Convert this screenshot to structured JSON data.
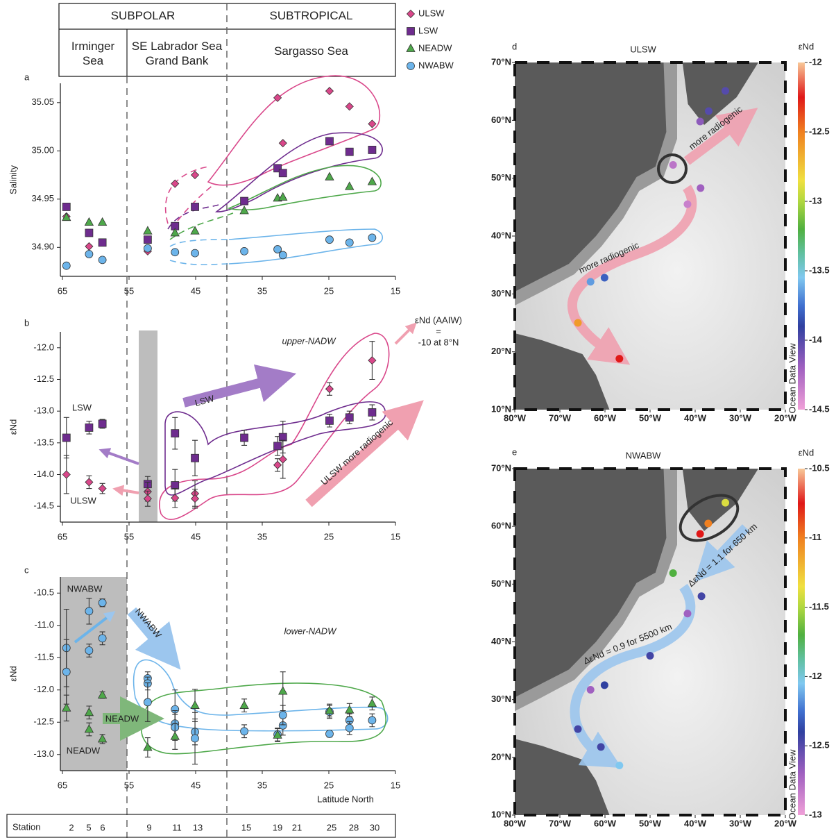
{
  "header": {
    "regions": [
      "SUBPOLAR",
      "SUBTROPICAL"
    ],
    "areas": [
      "Irminger Sea",
      "SE Labrador Sea Grand Bank",
      "Sargasso Sea"
    ]
  },
  "stations": {
    "label": "Station",
    "ids": [
      "2",
      "5",
      "6",
      "9",
      "11",
      "13",
      "15",
      "19",
      "21",
      "25",
      "28",
      "30"
    ]
  },
  "chart_data": [
    {
      "type": "scatter",
      "panel": "a",
      "ylabel": "Salinity",
      "xlim": [
        65,
        15
      ],
      "ylim": [
        34.87,
        35.07
      ],
      "xticks": [
        65,
        55,
        45,
        35,
        25,
        15
      ],
      "yticks": [
        {
          "value": 34.9,
          "label": "34.90"
        },
        34.95,
        {
          "value": 35,
          "label": "35.00"
        },
        35.05
      ],
      "series": [
        {
          "name": "ULSW",
          "color": "#d9478a",
          "marker": "diamond",
          "x": [
            64.4,
            61,
            52.2,
            48.1,
            45.1,
            32.7,
            31.9,
            24.9,
            21.9,
            18.5
          ],
          "values": [
            34.932,
            34.901,
            34.896,
            34.966,
            34.975,
            35.055,
            35.008,
            35.062,
            35.046,
            35.028
          ]
        },
        {
          "name": "LSW",
          "color": "#6e2c8e",
          "marker": "square",
          "x": [
            64.4,
            61,
            59,
            52.2,
            48.1,
            45.1,
            37.7,
            32.7,
            31.9,
            24.9,
            21.9,
            18.5
          ],
          "values": [
            34.942,
            34.915,
            34.905,
            34.908,
            34.922,
            34.942,
            34.948,
            34.982,
            34.977,
            35.01,
            34.999,
            35.001
          ]
        },
        {
          "name": "NEADW",
          "color": "#4ea84a",
          "marker": "triangle",
          "x": [
            64.4,
            61,
            59,
            52.2,
            48.1,
            45.1,
            37.7,
            32.7,
            31.9,
            24.9,
            21.9,
            18.5
          ],
          "values": [
            34.931,
            34.926,
            34.926,
            34.917,
            34.915,
            34.917,
            34.938,
            34.951,
            34.952,
            34.973,
            34.963,
            34.968
          ]
        },
        {
          "name": "NWABW",
          "color": "#6cb4ea",
          "marker": "circle",
          "x": [
            64.4,
            61,
            59,
            52.2,
            48.1,
            45.1,
            37.7,
            32.7,
            31.9,
            24.9,
            21.9,
            18.5
          ],
          "values": [
            34.881,
            34.893,
            34.887,
            34.899,
            34.895,
            34.894,
            34.896,
            34.898,
            34.892,
            34.908,
            34.905,
            34.91
          ]
        }
      ]
    },
    {
      "type": "scatter",
      "panel": "b",
      "ylabel": "εNd",
      "xlim": [
        65,
        15
      ],
      "ylim": [
        -14.75,
        -11.75
      ],
      "xticks": [
        65,
        55,
        45,
        35,
        25,
        15
      ],
      "yticks": [
        -14.5,
        {
          "value": -14,
          "label": "-14.0"
        },
        -13.5,
        {
          "value": -13,
          "label": "-13.0"
        },
        -12.5,
        {
          "value": -12,
          "label": "-12.0"
        }
      ],
      "annotations": [
        "upper-NADW",
        "LSW",
        "ULSW more radiogenic",
        "εNd (AAIW)",
        "=",
        "-10 at 8°N"
      ],
      "series": [
        {
          "name": "LSW",
          "color": "#6e2c8e",
          "marker": "square",
          "x": [
            64.4,
            61,
            59,
            52.2,
            48.1,
            48.1,
            45.1,
            37.7,
            32.7,
            31.9,
            24.9,
            21.9,
            18.5
          ],
          "values": [
            -13.42,
            -13.26,
            -13.2,
            -14.15,
            -13.35,
            -14.17,
            -13.74,
            -13.42,
            -13.55,
            -13.41,
            -13.15,
            -13.1,
            -13.02
          ],
          "errors": [
            0.32,
            0.1,
            0.07,
            0.12,
            0.25,
            0.25,
            0.28,
            0.12,
            0.15,
            0.25,
            0.1,
            0.1,
            0.12
          ]
        },
        {
          "name": "ULSW",
          "color": "#d9478a",
          "marker": "diamond",
          "x": [
            64.4,
            61,
            59,
            52.2,
            52.2,
            48.1,
            45.1,
            45.1,
            32.7,
            31.9,
            24.9,
            18.5
          ],
          "values": [
            -14.0,
            -14.12,
            -14.22,
            -14.27,
            -14.38,
            -14.37,
            -14.3,
            -14.38,
            -13.85,
            -13.76,
            -12.65,
            -12.2
          ],
          "errors": [
            0.3,
            0.1,
            0.08,
            0.15,
            0.12,
            0.15,
            0.2,
            0.15,
            0.1,
            0.3,
            0.1,
            0.3
          ]
        }
      ]
    },
    {
      "type": "scatter",
      "panel": "c",
      "ylabel": "εNd",
      "xlabel": "Latitude North",
      "xlim": [
        65,
        15
      ],
      "ylim": [
        -13.25,
        -10.25
      ],
      "xticks": [
        65,
        55,
        45,
        35,
        25,
        15
      ],
      "yticks": [
        {
          "value": -13,
          "label": "-13.0"
        },
        -12.5,
        {
          "value": -12,
          "label": "-12.0"
        },
        -11.5,
        {
          "value": -11,
          "label": "-11.0"
        },
        -10.5
      ],
      "annotations": [
        "lower-NADW",
        "NWABW",
        "NEADW"
      ],
      "series": [
        {
          "name": "NWABW",
          "color": "#6cb4ea",
          "marker": "circle",
          "x": [
            64.4,
            64.4,
            61,
            61,
            59,
            59,
            52.2,
            52.2,
            52.2,
            48.1,
            48.1,
            48.1,
            45.1,
            45.1,
            37.7,
            32.7,
            31.9,
            31.9,
            24.9,
            24.9,
            21.9,
            21.9,
            18.5
          ],
          "values": [
            -11.35,
            -11.72,
            -10.78,
            -11.39,
            -10.65,
            -11.2,
            -11.82,
            -11.9,
            -12.19,
            -12.3,
            -12.52,
            -12.58,
            -12.65,
            -12.75,
            -12.64,
            -12.69,
            -12.55,
            -12.39,
            -12.34,
            -12.68,
            -12.47,
            -12.59,
            -12.47
          ],
          "errors": [
            0.6,
            0.5,
            0.2,
            0.1,
            0.06,
            0.1,
            0.1,
            0.1,
            0.3,
            0.3,
            0.2,
            0.2,
            0.2,
            0.4,
            0.1,
            0.1,
            0.15,
            0.15,
            0.1,
            0.05,
            0.1,
            0.1,
            0.1
          ]
        },
        {
          "name": "NEADW",
          "color": "#4ea84a",
          "marker": "triangle",
          "x": [
            64.4,
            61,
            61,
            59,
            59,
            52.2,
            48.1,
            45.1,
            37.7,
            32.7,
            31.9,
            24.9,
            21.9,
            18.5
          ],
          "values": [
            -12.28,
            -12.35,
            -12.61,
            -12.08,
            -12.76,
            -12.89,
            -12.72,
            -12.24,
            -12.24,
            -12.7,
            -12.02,
            -12.32,
            -12.31,
            -12.21
          ],
          "errors": [
            0.2,
            0.1,
            0.1,
            0.05,
            0.07,
            0.15,
            0.2,
            0.25,
            0.1,
            0.1,
            0.3,
            0.1,
            0.1,
            0.1
          ]
        }
      ]
    },
    {
      "type": "map",
      "panel": "d",
      "title": "ULSW",
      "color": "#d9478a",
      "colorbar_label": "εNd",
      "xlim": [
        -80,
        -20
      ],
      "ylim": [
        10,
        70
      ],
      "xticks": [
        {
          "value": -80,
          "label": "80°W"
        },
        {
          "value": -70,
          "label": "70°W"
        },
        {
          "value": -60,
          "label": "60°W"
        },
        {
          "value": -50,
          "label": "50°W"
        },
        {
          "value": -40,
          "label": "40°W"
        },
        {
          "value": -30,
          "label": "30°W"
        },
        {
          "value": -20,
          "label": "20°W"
        }
      ],
      "yticks": [
        {
          "value": 10,
          "label": "10°N"
        },
        {
          "value": 20,
          "label": "20°N"
        },
        {
          "value": 30,
          "label": "30°N"
        },
        {
          "value": 40,
          "label": "40°N"
        },
        {
          "value": 50,
          "label": "50°N"
        },
        {
          "value": 60,
          "label": "60°N"
        },
        {
          "value": 70,
          "label": "70°N"
        }
      ],
      "clim": [
        -14.5,
        -12
      ],
      "cticks": [
        -14.5,
        -14,
        -13.5,
        -13,
        -12.5,
        -12
      ],
      "annotations": [
        "more radiogenic",
        "more radiogenic",
        "Ocean Data View"
      ],
      "x": [
        -44.9,
        -38.8,
        -41.7,
        -38.9,
        -37,
        -33.3,
        -63.2,
        -60.1,
        -66,
        -56.8
      ],
      "y": [
        52.3,
        48.3,
        45.5,
        59.8,
        61.6,
        65.1,
        32.1,
        32.8,
        25,
        18.8
      ],
      "values": [
        -14.3,
        -14.2,
        -14.35,
        -14.15,
        -14.0,
        -14.0,
        -13.65,
        -13.8,
        -12.6,
        -12.25
      ]
    },
    {
      "type": "map",
      "panel": "e",
      "title": "NWABW",
      "color": "#6cb4ea",
      "colorbar_label": "εNd",
      "xlim": [
        -80,
        -20
      ],
      "ylim": [
        10,
        70
      ],
      "xticks": [
        {
          "value": -80,
          "label": "80°W"
        },
        {
          "value": -70,
          "label": "70°W"
        },
        {
          "value": -60,
          "label": "60°W"
        },
        {
          "value": -50,
          "label": "50°W"
        },
        {
          "value": -40,
          "label": "40°W"
        },
        {
          "value": -30,
          "label": "30°W"
        },
        {
          "value": -20,
          "label": "20°W"
        }
      ],
      "yticks": [
        {
          "value": 10,
          "label": "10°N"
        },
        {
          "value": 20,
          "label": "20°N"
        },
        {
          "value": 30,
          "label": "30°N"
        },
        {
          "value": 40,
          "label": "40°N"
        },
        {
          "value": 50,
          "label": "50°N"
        },
        {
          "value": 60,
          "label": "60°N"
        },
        {
          "value": 70,
          "label": "70°N"
        }
      ],
      "clim": [
        -13,
        -10.5
      ],
      "cticks": [
        -13,
        -12.5,
        -12,
        -11.5,
        -11,
        -10.5
      ],
      "annotations": [
        "ΔεNd = 0.9  for  5500 km",
        "ΔεNd = 1.1 for 650 km",
        "Ocean Data View"
      ],
      "x": [
        -33.3,
        -37.1,
        -38.9,
        -44.9,
        -38.6,
        -41.7,
        -50,
        -60.1,
        -63.2,
        -66,
        -60.9,
        -56.8
      ],
      "y": [
        64.1,
        60.5,
        58.7,
        51.9,
        47.9,
        44.9,
        37.6,
        32.5,
        31.7,
        24.9,
        21.8,
        18.6
      ],
      "values": [
        -11.4,
        -11.0,
        -10.75,
        -11.7,
        -12.45,
        -12.7,
        -12.45,
        -12.4,
        -12.7,
        -12.45,
        -12.45,
        -12.05
      ]
    }
  ]
}
